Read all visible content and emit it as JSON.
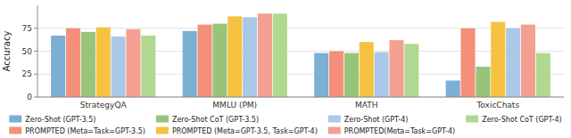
{
  "chart_data": {
    "type": "bar",
    "categories": [
      "StrategyQA",
      "MMLU (PM)",
      "MATH",
      "ToxicChats"
    ],
    "series": [
      {
        "name": "Zero-Shot (GPT-3.5)",
        "color": "#7bafd4",
        "values": [
          67,
          72,
          48,
          18
        ]
      },
      {
        "name": "PROMPTED (Meta=Task=GPT-3.5)",
        "color": "#f4907a",
        "values": [
          75,
          79,
          50,
          75
        ]
      },
      {
        "name": "Zero-Shot CoT (GPT-3.5)",
        "color": "#98c47a",
        "values": [
          71,
          80,
          48,
          33
        ]
      },
      {
        "name": "PROMPTED (Meta=GPT-3.5, Task=GPT-4)",
        "color": "#f5c242",
        "values": [
          76,
          88,
          60,
          82
        ]
      },
      {
        "name": "Zero-Shot (GPT-4)",
        "color": "#aac8e8",
        "values": [
          66,
          87,
          49,
          75
        ]
      },
      {
        "name": "PROMPTED(Meta=Task=GPT-4)",
        "color": "#f4a090",
        "values": [
          74,
          91,
          62,
          79
        ]
      },
      {
        "name": "Zero-Shot CoT (GPT-4)",
        "color": "#b0d890",
        "values": [
          67,
          91,
          58,
          48
        ]
      }
    ],
    "ylabel": "Accuracy",
    "ylim": [
      0,
      100
    ],
    "yticks": [
      0,
      25,
      50,
      75
    ],
    "grid": true,
    "legend": "bottom"
  }
}
